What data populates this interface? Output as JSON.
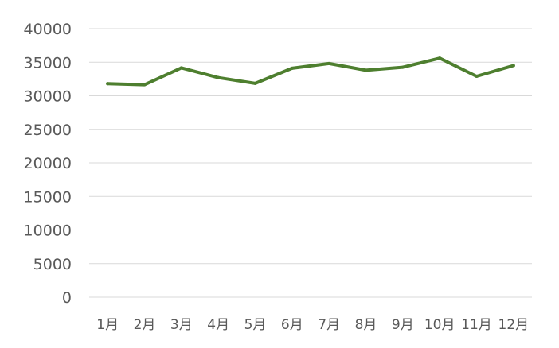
{
  "chart_data": {
    "type": "line",
    "title": "",
    "xlabel": "",
    "ylabel": "",
    "categories": [
      "1月",
      "2月",
      "3月",
      "4月",
      "5月",
      "6月",
      "7月",
      "8月",
      "9月",
      "10月",
      "11月",
      "12月"
    ],
    "series": [
      {
        "values": [
          31800,
          31650,
          34150,
          32700,
          31850,
          34100,
          34800,
          33800,
          34250,
          35600,
          32900,
          34500
        ]
      }
    ],
    "ylim": [
      0,
      40000
    ],
    "yticks": [
      0,
      5000,
      10000,
      15000,
      20000,
      25000,
      30000,
      35000,
      40000
    ],
    "grid": true,
    "legend": "none",
    "colors": {
      "line": "#4e7f2f",
      "grid": "#d9d9d9",
      "text": "#595959"
    }
  }
}
